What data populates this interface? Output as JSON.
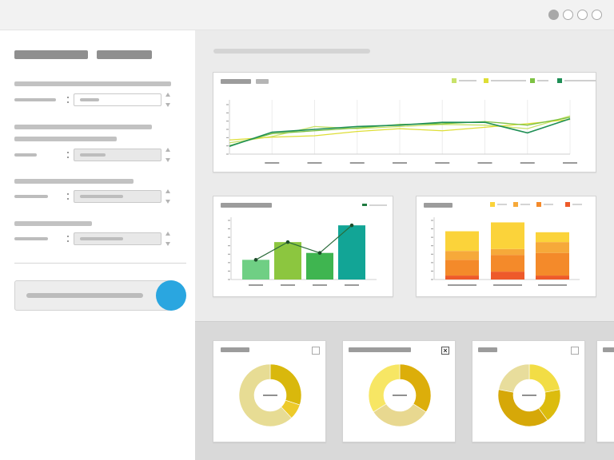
{
  "window": {
    "controls": [
      "window-dot-1",
      "window-dot-2",
      "window-dot-3",
      "window-dot-4"
    ]
  },
  "colors": {
    "accent_button": "#2aa6e0",
    "line_series": [
      "#c8e26a",
      "#dede36",
      "#7dc243",
      "#1f8f56"
    ],
    "bar_series": [
      "#6fcf84",
      "#8cc63f",
      "#3fb550",
      "#12a596"
    ],
    "stacked_series": [
      "#fbc02d",
      "#f9a825",
      "#f08a24",
      "#ee5a2a"
    ],
    "donut_series": [
      "#dbbd0f",
      "#f6e14f",
      "#e8da8a",
      "#f0e08c"
    ]
  },
  "chart_data": [
    {
      "type": "line",
      "categories": [
        "1",
        "2",
        "3",
        "4",
        "5",
        "6",
        "7",
        "8",
        "9"
      ],
      "ylim": [
        0,
        7
      ],
      "grid": true,
      "legend": "top-right",
      "series": [
        {
          "values": [
            1.6,
            2.5,
            3.9,
            3.6,
            3.9,
            4.2,
            4.1,
            3.6,
            5.4
          ]
        },
        {
          "values": [
            2.0,
            2.4,
            2.6,
            3.2,
            3.6,
            3.3,
            3.8,
            4.3,
            4.9
          ]
        },
        {
          "values": [
            1.2,
            2.9,
            3.3,
            3.7,
            4.2,
            4.3,
            4.6,
            4.1,
            5.2
          ]
        },
        {
          "values": [
            1.1,
            3.1,
            3.5,
            3.9,
            4.1,
            4.5,
            4.5,
            3.0,
            5.0
          ]
        }
      ]
    },
    {
      "type": "bar",
      "categories": [
        "1",
        "2",
        "3",
        "4"
      ],
      "values": [
        2.0,
        3.8,
        2.7,
        5.5
      ],
      "line_values": [
        2.0,
        3.8,
        2.7,
        5.5
      ],
      "ylim": [
        0,
        6
      ],
      "legend": "top-right"
    },
    {
      "type": "bar",
      "stacked": true,
      "categories": [
        "1",
        "2",
        "3"
      ],
      "series": [
        {
          "values": [
            2.0,
            2.7,
            1.0
          ]
        },
        {
          "values": [
            0.9,
            0.6,
            1.1
          ]
        },
        {
          "values": [
            1.6,
            1.7,
            2.3
          ]
        },
        {
          "values": [
            0.4,
            0.8,
            0.4
          ]
        }
      ],
      "ylim": [
        0,
        6
      ],
      "legend": "top"
    },
    {
      "type": "pie",
      "donut": true,
      "values": [
        30,
        8,
        62
      ]
    },
    {
      "type": "pie",
      "donut": true,
      "values": [
        34,
        32,
        34
      ]
    },
    {
      "type": "pie",
      "donut": true,
      "values": [
        22,
        18,
        38,
        22
      ]
    }
  ]
}
